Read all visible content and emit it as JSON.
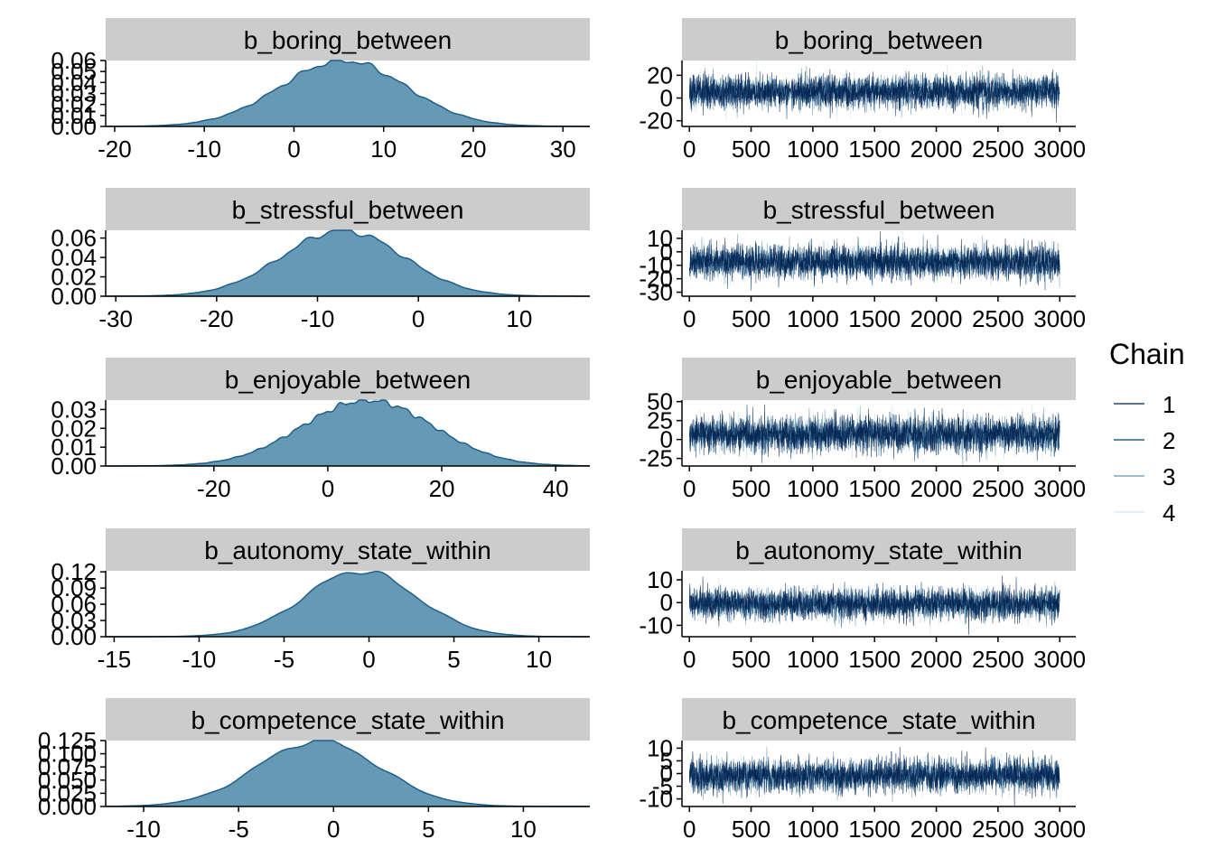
{
  "colors": {
    "strip_bg": "#cccccc",
    "density_fill": "#6699b4",
    "density_line": "#1f5f8b",
    "chain1": "#011f4b",
    "chain2": "#03396c",
    "chain3": "#6497b1",
    "chain4": "#d2e4f0"
  },
  "legend": {
    "title": "Chain",
    "items": [
      "1",
      "2",
      "3",
      "4"
    ]
  },
  "chart_data": [
    {
      "type": "area",
      "panel": "density",
      "title": "b_boring_between",
      "xlim": [
        -21,
        33
      ],
      "xticks": [
        -20,
        -10,
        0,
        10,
        20,
        30
      ],
      "ylim": [
        0,
        0.06
      ],
      "yticks": [
        0.0,
        0.01,
        0.02,
        0.03,
        0.04,
        0.05,
        0.06
      ],
      "ytick_labels": [
        "0.00",
        "0.01",
        "0.02",
        "0.03",
        "0.04",
        "0.05",
        "0.06"
      ],
      "density": {
        "mean": 5.5,
        "sd": 7.0,
        "peak": 0.06
      }
    },
    {
      "type": "line",
      "panel": "trace",
      "title": "b_boring_between",
      "xlim": [
        -60,
        3130
      ],
      "xticks": [
        0,
        500,
        1000,
        1500,
        2000,
        2500,
        3000
      ],
      "ylim": [
        -25,
        33
      ],
      "yticks": [
        -20,
        0,
        20
      ],
      "trace": {
        "mean": 5.5,
        "sd": 7.0,
        "iterations": 3000,
        "chains": 4
      }
    },
    {
      "type": "area",
      "panel": "density",
      "title": "b_stressful_between",
      "xlim": [
        -31,
        17
      ],
      "xticks": [
        -30,
        -20,
        -10,
        0,
        10
      ],
      "ylim": [
        0,
        0.068
      ],
      "yticks": [
        0.0,
        0.02,
        0.04,
        0.06
      ],
      "ytick_labels": [
        "0.00",
        "0.02",
        "0.04",
        "0.06"
      ],
      "density": {
        "mean": -7.5,
        "sd": 6.0,
        "peak": 0.068
      }
    },
    {
      "type": "line",
      "panel": "trace",
      "title": "b_stressful_between",
      "xlim": [
        -60,
        3130
      ],
      "xticks": [
        0,
        500,
        1000,
        1500,
        2000,
        2500,
        3000
      ],
      "ylim": [
        -33,
        16
      ],
      "yticks": [
        -30,
        -20,
        -10,
        0,
        10
      ],
      "trace": {
        "mean": -7.5,
        "sd": 6.0,
        "iterations": 3000,
        "chains": 4
      }
    },
    {
      "type": "area",
      "panel": "density",
      "title": "b_enjoyable_between",
      "xlim": [
        -39,
        46
      ],
      "xticks": [
        -20,
        0,
        20,
        40
      ],
      "ylim": [
        0,
        0.035
      ],
      "yticks": [
        0.0,
        0.01,
        0.02,
        0.03
      ],
      "ytick_labels": [
        "0.00",
        "0.01",
        "0.02",
        "0.03"
      ],
      "density": {
        "mean": 7.0,
        "sd": 11.5,
        "peak": 0.035
      }
    },
    {
      "type": "line",
      "panel": "trace",
      "title": "b_enjoyable_between",
      "xlim": [
        -60,
        3130
      ],
      "xticks": [
        0,
        500,
        1000,
        1500,
        2000,
        2500,
        3000
      ],
      "ylim": [
        -35,
        52
      ],
      "yticks": [
        -25,
        0,
        25,
        50
      ],
      "trace": {
        "mean": 7.0,
        "sd": 11.5,
        "iterations": 3000,
        "chains": 4
      }
    },
    {
      "type": "area",
      "panel": "density",
      "title": "b_autonomy_state_within",
      "xlim": [
        -15.5,
        13
      ],
      "xticks": [
        -15,
        -10,
        -5,
        0,
        5,
        10
      ],
      "ylim": [
        0,
        0.122
      ],
      "yticks": [
        0.0,
        0.03,
        0.06,
        0.09,
        0.12
      ],
      "ytick_labels": [
        "0.00",
        "0.03",
        "0.06",
        "0.09",
        "0.12"
      ],
      "density": {
        "mean": -0.5,
        "sd": 3.3,
        "peak": 0.122
      }
    },
    {
      "type": "line",
      "panel": "trace",
      "title": "b_autonomy_state_within",
      "xlim": [
        -60,
        3130
      ],
      "xticks": [
        0,
        500,
        1000,
        1500,
        2000,
        2500,
        3000
      ],
      "ylim": [
        -15,
        14
      ],
      "yticks": [
        -10,
        0,
        10
      ],
      "trace": {
        "mean": -0.5,
        "sd": 3.3,
        "iterations": 3000,
        "chains": 4
      }
    },
    {
      "type": "area",
      "panel": "density",
      "title": "b_competence_state_within",
      "xlim": [
        -12,
        13.5
      ],
      "xticks": [
        -10,
        -5,
        0,
        5,
        10
      ],
      "ylim": [
        0,
        0.125
      ],
      "yticks": [
        0.0,
        0.025,
        0.05,
        0.075,
        0.1,
        0.125
      ],
      "ytick_labels": [
        "0.000",
        "0.025",
        "0.050",
        "0.075",
        "0.100",
        "0.125"
      ],
      "density": {
        "mean": -0.8,
        "sd": 3.2,
        "peak": 0.125
      }
    },
    {
      "type": "line",
      "panel": "trace",
      "title": "b_competence_state_within",
      "xlim": [
        -60,
        3130
      ],
      "xticks": [
        0,
        500,
        1000,
        1500,
        2000,
        2500,
        3000
      ],
      "ylim": [
        -13,
        13
      ],
      "yticks": [
        -10,
        -5,
        0,
        5,
        10
      ],
      "trace": {
        "mean": -0.8,
        "sd": 3.2,
        "iterations": 3000,
        "chains": 4
      }
    }
  ]
}
